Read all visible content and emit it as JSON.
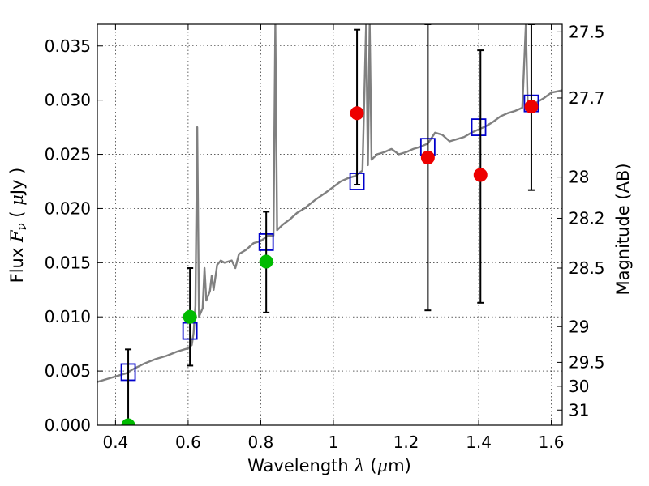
{
  "chart_data": {
    "type": "scatter",
    "title": "",
    "xlabel": {
      "prefix": "Wavelength  ",
      "symbol": "λ",
      "unit_open": " (",
      "unit_mu": "μ",
      "unit_rest": "m)"
    },
    "ylabel": {
      "prefix": "Flux  ",
      "symbol": "F",
      "subscript": "ν",
      "unit_open": "  ( ",
      "unit_mu": "μ",
      "unit_rest": "Jy )"
    },
    "ylabel_right": "Magnitude (AB)",
    "xlim": [
      0.35,
      1.63
    ],
    "ylim": [
      0.0,
      0.037
    ],
    "grid": true,
    "x_ticks": [
      0.4,
      0.6,
      0.8,
      1.0,
      1.2,
      1.4,
      1.6
    ],
    "x_tick_labels": [
      "0.4",
      "0.6",
      "0.8",
      "1",
      "1.2",
      "1.4",
      "1.6"
    ],
    "y_ticks": [
      0.0,
      0.005,
      0.01,
      0.015,
      0.02,
      0.025,
      0.03,
      0.035
    ],
    "y_tick_labels": [
      "0.000",
      "0.005",
      "0.010",
      "0.015",
      "0.020",
      "0.025",
      "0.030",
      "0.035"
    ],
    "right_ticks": [
      {
        "flux": 0.0363,
        "label": "27.5"
      },
      {
        "flux": 0.0302,
        "label": "27.7"
      },
      {
        "flux": 0.0229,
        "label": "28"
      },
      {
        "flux": 0.0191,
        "label": "28.2"
      },
      {
        "flux": 0.0145,
        "label": "28.5"
      },
      {
        "flux": 0.0091,
        "label": "29"
      },
      {
        "flux": 0.0058,
        "label": "29.5"
      },
      {
        "flux": 0.0036,
        "label": "30"
      },
      {
        "flux": 0.0014,
        "label": "31"
      }
    ],
    "series": [
      {
        "kind": "line",
        "color": "#808080",
        "points": [
          [
            0.35,
            0.004
          ],
          [
            0.38,
            0.0043
          ],
          [
            0.4,
            0.0045
          ],
          [
            0.43,
            0.0048
          ],
          [
            0.45,
            0.0052
          ],
          [
            0.48,
            0.0057
          ],
          [
            0.51,
            0.0061
          ],
          [
            0.54,
            0.0064
          ],
          [
            0.57,
            0.0068
          ],
          [
            0.6,
            0.0071
          ],
          [
            0.61,
            0.0074
          ],
          [
            0.615,
            0.0085
          ],
          [
            0.62,
            0.011
          ],
          [
            0.625,
            0.0275
          ],
          [
            0.63,
            0.01
          ],
          [
            0.64,
            0.0108
          ],
          [
            0.645,
            0.0145
          ],
          [
            0.65,
            0.0115
          ],
          [
            0.66,
            0.0124
          ],
          [
            0.665,
            0.0138
          ],
          [
            0.67,
            0.0125
          ],
          [
            0.68,
            0.0148
          ],
          [
            0.69,
            0.0152
          ],
          [
            0.7,
            0.015
          ],
          [
            0.72,
            0.0152
          ],
          [
            0.73,
            0.0145
          ],
          [
            0.74,
            0.0158
          ],
          [
            0.76,
            0.0162
          ],
          [
            0.78,
            0.0168
          ],
          [
            0.8,
            0.017
          ],
          [
            0.82,
            0.0175
          ],
          [
            0.835,
            0.0175
          ],
          [
            0.84,
            0.037
          ],
          [
            0.845,
            0.018
          ],
          [
            0.86,
            0.0185
          ],
          [
            0.88,
            0.019
          ],
          [
            0.9,
            0.0196
          ],
          [
            0.92,
            0.02
          ],
          [
            0.95,
            0.0208
          ],
          [
            0.98,
            0.0215
          ],
          [
            1.0,
            0.022
          ],
          [
            1.02,
            0.0225
          ],
          [
            1.04,
            0.0228
          ],
          [
            1.06,
            0.023
          ],
          [
            1.08,
            0.0235
          ],
          [
            1.09,
            0.037
          ],
          [
            1.095,
            0.024
          ],
          [
            1.1,
            0.037
          ],
          [
            1.105,
            0.0245
          ],
          [
            1.12,
            0.025
          ],
          [
            1.14,
            0.0252
          ],
          [
            1.16,
            0.0255
          ],
          [
            1.18,
            0.025
          ],
          [
            1.2,
            0.0252
          ],
          [
            1.22,
            0.0255
          ],
          [
            1.24,
            0.0257
          ],
          [
            1.26,
            0.026
          ],
          [
            1.28,
            0.027
          ],
          [
            1.3,
            0.0268
          ],
          [
            1.32,
            0.0262
          ],
          [
            1.34,
            0.0264
          ],
          [
            1.36,
            0.0266
          ],
          [
            1.38,
            0.027
          ],
          [
            1.4,
            0.0273
          ],
          [
            1.42,
            0.0276
          ],
          [
            1.44,
            0.028
          ],
          [
            1.46,
            0.0285
          ],
          [
            1.48,
            0.0288
          ],
          [
            1.5,
            0.029
          ],
          [
            1.52,
            0.0293
          ],
          [
            1.53,
            0.037
          ],
          [
            1.535,
            0.0292
          ],
          [
            1.54,
            0.0295
          ],
          [
            1.56,
            0.0298
          ],
          [
            1.58,
            0.0302
          ],
          [
            1.6,
            0.0307
          ],
          [
            1.63,
            0.0309
          ]
        ]
      },
      {
        "kind": "squares",
        "color": "#0000cc",
        "points": [
          [
            0.435,
            0.0049
          ],
          [
            0.605,
            0.0087
          ],
          [
            0.815,
            0.0169
          ],
          [
            1.065,
            0.0225
          ],
          [
            1.26,
            0.0257
          ],
          [
            1.4,
            0.0275
          ],
          [
            1.545,
            0.0297
          ]
        ]
      },
      {
        "kind": "dots",
        "color": "#00bb00",
        "points": [
          [
            0.435,
            0.0
          ],
          [
            0.605,
            0.01
          ],
          [
            0.815,
            0.0151
          ]
        ]
      },
      {
        "kind": "dots",
        "color": "#ee0000",
        "points": [
          [
            1.065,
            0.0288
          ],
          [
            1.26,
            0.0247
          ],
          [
            1.405,
            0.0231
          ],
          [
            1.545,
            0.0294
          ]
        ]
      },
      {
        "kind": "errorbars",
        "color": "#000000",
        "bars": [
          [
            0.435,
            0.0,
            0.007
          ],
          [
            0.605,
            0.0055,
            0.0145
          ],
          [
            0.815,
            0.0104,
            0.0197
          ],
          [
            1.065,
            0.0222,
            0.0365
          ],
          [
            1.26,
            0.0106,
            0.037
          ],
          [
            1.405,
            0.0113,
            0.0346
          ],
          [
            1.545,
            0.0217,
            0.037
          ]
        ]
      }
    ]
  }
}
